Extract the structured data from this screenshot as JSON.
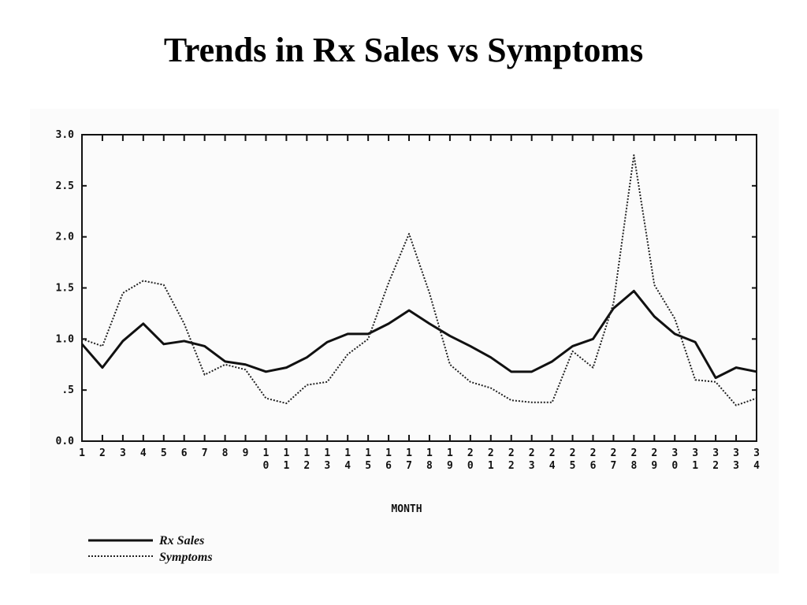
{
  "slide": {
    "title": "Trends in Rx Sales vs Symptoms"
  },
  "chart_data": {
    "type": "line",
    "title": "Trends in Rx Sales vs Symptoms",
    "xlabel": "MONTH",
    "ylabel": "",
    "x": [
      1,
      2,
      3,
      4,
      5,
      6,
      7,
      8,
      9,
      10,
      11,
      12,
      13,
      14,
      15,
      16,
      17,
      18,
      19,
      20,
      21,
      22,
      23,
      24,
      25,
      26,
      27,
      28,
      29,
      30,
      31,
      32,
      33,
      34
    ],
    "x_tick_labels": [
      "1",
      "2",
      "3",
      "4",
      "5",
      "6",
      "7",
      "8",
      "9",
      "10",
      "11",
      "12",
      "13",
      "14",
      "15",
      "16",
      "17",
      "18",
      "19",
      "20",
      "21",
      "22",
      "23",
      "24",
      "25",
      "26",
      "27",
      "28",
      "29",
      "30",
      "31",
      "32",
      "33",
      "34"
    ],
    "y_tick_labels": [
      "0.0",
      ".5",
      "1.0",
      "1.5",
      "2.0",
      "2.5",
      "3.0"
    ],
    "y_ticks": [
      0,
      0.5,
      1.0,
      1.5,
      2.0,
      2.5,
      3.0
    ],
    "ylim": [
      0,
      3.0
    ],
    "xlim": [
      1,
      34
    ],
    "grid": false,
    "legend_position": "bottom-left",
    "series": [
      {
        "name": "Rx Sales",
        "style": "solid",
        "color": "#111111",
        "values": [
          0.95,
          0.72,
          0.98,
          1.15,
          0.95,
          0.98,
          0.93,
          0.78,
          0.75,
          0.68,
          0.72,
          0.82,
          0.97,
          1.05,
          1.05,
          1.15,
          1.28,
          1.15,
          1.03,
          0.93,
          0.82,
          0.68,
          0.68,
          0.78,
          0.93,
          1.0,
          1.3,
          1.47,
          1.22,
          1.05,
          0.97,
          0.62,
          0.72,
          0.68
        ]
      },
      {
        "name": "Symptoms",
        "style": "dotted",
        "color": "#222222",
        "values": [
          1.0,
          0.93,
          1.45,
          1.57,
          1.53,
          1.15,
          0.65,
          0.75,
          0.7,
          0.42,
          0.37,
          0.55,
          0.58,
          0.85,
          1.0,
          1.55,
          2.03,
          1.45,
          0.75,
          0.58,
          0.52,
          0.4,
          0.38,
          0.38,
          0.88,
          0.72,
          1.35,
          2.8,
          1.53,
          1.2,
          0.6,
          0.58,
          0.35,
          0.42
        ]
      }
    ]
  }
}
